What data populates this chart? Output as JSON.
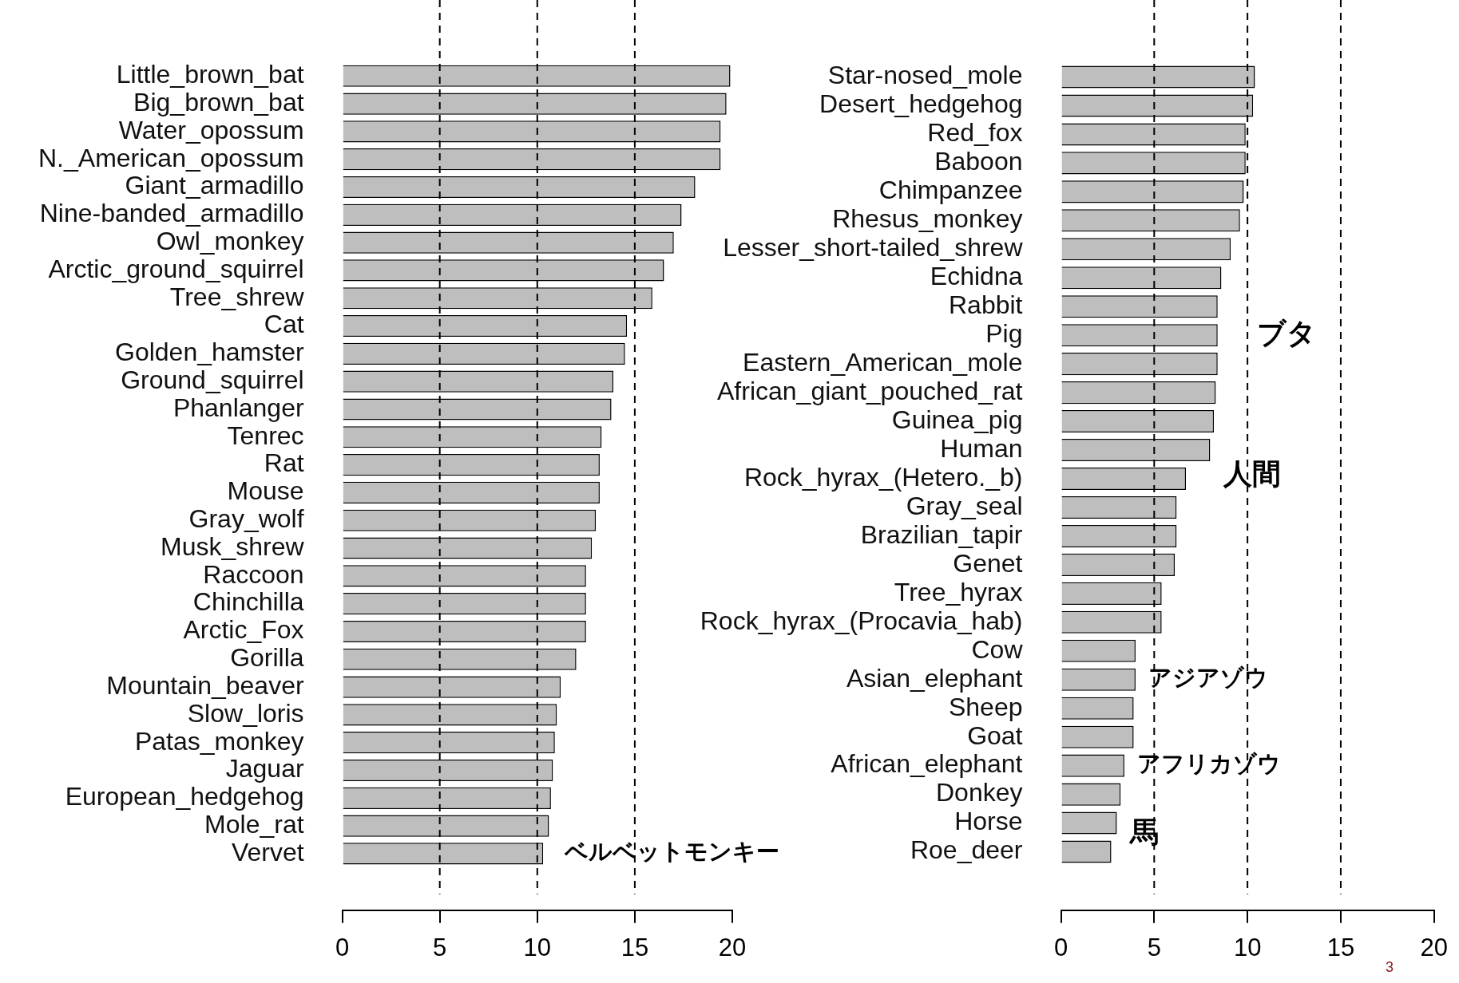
{
  "chart_data": [
    {
      "type": "bar",
      "orientation": "horizontal",
      "categories": [
        "Little_brown_bat",
        "Big_brown_bat",
        "Water_opossum",
        "N._American_opossum",
        "Giant_armadillo",
        "Nine-banded_armadillo",
        "Owl_monkey",
        "Arctic_ground_squirrel",
        "Tree_shrew",
        "Cat",
        "Golden_hamster",
        "Ground_squirrel",
        "Phanlanger",
        "Tenrec",
        "Rat",
        "Mouse",
        "Gray_wolf",
        "Musk_shrew",
        "Raccoon",
        "Chinchilla",
        "Arctic_Fox",
        "Gorilla",
        "Mountain_beaver",
        "Slow_loris",
        "Patas_monkey",
        "Jaguar",
        "European_hedgehog",
        "Mole_rat",
        "Vervet"
      ],
      "values": [
        19.9,
        19.7,
        19.4,
        19.4,
        18.1,
        17.4,
        17.0,
        16.5,
        15.9,
        14.6,
        14.5,
        13.9,
        13.8,
        13.3,
        13.2,
        13.2,
        13.0,
        12.8,
        12.5,
        12.5,
        12.5,
        12.0,
        11.2,
        11.0,
        10.9,
        10.8,
        10.7,
        10.6,
        10.3
      ],
      "color": "#bebebe",
      "xlim": [
        0,
        20
      ],
      "xticks": [
        0,
        5,
        10,
        15,
        20
      ],
      "grid": false,
      "legend": false,
      "ref_lines": [
        {
          "axis": "x",
          "value": 5,
          "line_style": "dashed",
          "color": "#000000"
        },
        {
          "axis": "x",
          "value": 10,
          "line_style": "dashed",
          "color": "#000000"
        },
        {
          "axis": "x",
          "value": 15,
          "line_style": "dashed",
          "color": "#000000"
        }
      ],
      "annotations": [
        "ベルベットモンキー"
      ]
    },
    {
      "type": "bar",
      "orientation": "horizontal",
      "categories": [
        "Star-nosed_mole",
        "Desert_hedgehog",
        "Red_fox",
        "Baboon",
        "Chimpanzee",
        "Rhesus_monkey",
        "Lesser_short-tailed_shrew",
        "Echidna",
        "Rabbit",
        "Pig",
        "Eastern_American_mole",
        "African_giant_pouched_rat",
        "Guinea_pig",
        "Human",
        "Rock_hyrax_(Hetero._b)",
        "Gray_seal",
        "Brazilian_tapir",
        "Genet",
        "Tree_hyrax",
        "Rock_hyrax_(Procavia_hab)",
        "Cow",
        "Asian_elephant",
        "Sheep",
        "Goat",
        "African_elephant",
        "Donkey",
        "Horse",
        "Roe_deer"
      ],
      "values": [
        10.4,
        10.3,
        9.9,
        9.9,
        9.8,
        9.6,
        9.1,
        8.6,
        8.4,
        8.4,
        8.4,
        8.3,
        8.2,
        8.0,
        6.7,
        6.2,
        6.2,
        6.1,
        5.4,
        5.4,
        4.0,
        4.0,
        3.9,
        3.9,
        3.4,
        3.2,
        3.0,
        2.7
      ],
      "color": "#bebebe",
      "xlim": [
        0,
        20
      ],
      "xticks": [
        0,
        5,
        10,
        15,
        20
      ],
      "grid": false,
      "legend": false,
      "ref_lines": [
        {
          "axis": "x",
          "value": 5,
          "line_style": "dashed",
          "color": "#000000"
        },
        {
          "axis": "x",
          "value": 10,
          "line_style": "dashed",
          "color": "#000000"
        },
        {
          "axis": "x",
          "value": 15,
          "line_style": "dashed",
          "color": "#000000"
        }
      ],
      "annotations": [
        "ブタ",
        "人間",
        "アジアゾウ",
        "アフリカゾウ",
        "馬",
        "3"
      ]
    }
  ]
}
